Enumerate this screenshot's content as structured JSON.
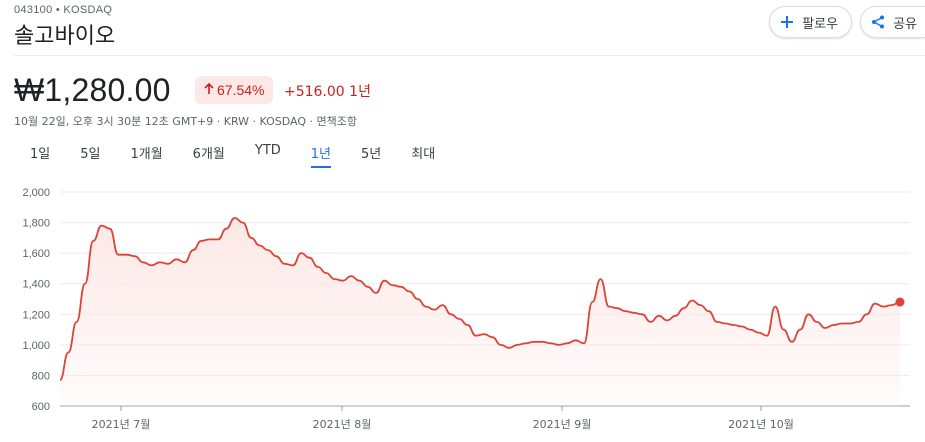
{
  "header": {
    "ticker_line": "043100 • KOSDAQ",
    "company_name": "솔고바이오"
  },
  "actions": {
    "follow_label": "팔로우",
    "share_label": "공유"
  },
  "quote": {
    "price": "₩1,280.00",
    "change_percent": "67.54%",
    "change_absolute": "+516.00 1년",
    "meta": "10월 22일, 오후 3시 30분 12초 GMT+9 · KRW · KOSDAQ · 면책조항"
  },
  "tabs": [
    {
      "label": "1일",
      "active": false
    },
    {
      "label": "5일",
      "active": false
    },
    {
      "label": "1개월",
      "active": false
    },
    {
      "label": "6개월",
      "active": false
    },
    {
      "label": "YTD",
      "active": false
    },
    {
      "label": "1년",
      "active": true
    },
    {
      "label": "5년",
      "active": false
    },
    {
      "label": "최대",
      "active": false
    }
  ],
  "colors": {
    "line": "#db4437",
    "fill": "#fce8e6",
    "negative": "#c5221f",
    "accent": "#1a73e8"
  },
  "icons": {
    "follow": "plus-icon",
    "share": "share-icon"
  },
  "chart_data": {
    "type": "area",
    "title": "",
    "xlabel": "",
    "ylabel": "",
    "ylim": [
      600,
      2000
    ],
    "y_ticks": [
      2000,
      1800,
      1600,
      1400,
      1200,
      1000,
      800,
      600
    ],
    "x_tick_labels": [
      "2021년 7월",
      "2021년 8월",
      "2021년 9월",
      "2021년 10월"
    ],
    "grid": true,
    "series": [
      {
        "values": [
          770,
          950,
          1150,
          1400,
          1680,
          1780,
          1760,
          1590,
          1590,
          1580,
          1540,
          1520,
          1540,
          1530,
          1560,
          1540,
          1620,
          1680,
          1690,
          1690,
          1760,
          1830,
          1800,
          1700,
          1650,
          1620,
          1580,
          1530,
          1520,
          1600,
          1570,
          1510,
          1470,
          1430,
          1420,
          1450,
          1420,
          1380,
          1340,
          1420,
          1390,
          1380,
          1350,
          1300,
          1250,
          1230,
          1260,
          1200,
          1170,
          1130,
          1060,
          1070,
          1050,
          1000,
          980,
          1000,
          1010,
          1020,
          1020,
          1010,
          1000,
          1010,
          1030,
          1010,
          1280,
          1430,
          1250,
          1240,
          1220,
          1210,
          1200,
          1150,
          1190,
          1160,
          1190,
          1240,
          1290,
          1260,
          1220,
          1150,
          1140,
          1130,
          1120,
          1100,
          1080,
          1060,
          1250,
          1100,
          1020,
          1100,
          1200,
          1150,
          1110,
          1130,
          1140,
          1140,
          1150,
          1200,
          1270,
          1250,
          1260,
          1280
        ]
      }
    ]
  }
}
